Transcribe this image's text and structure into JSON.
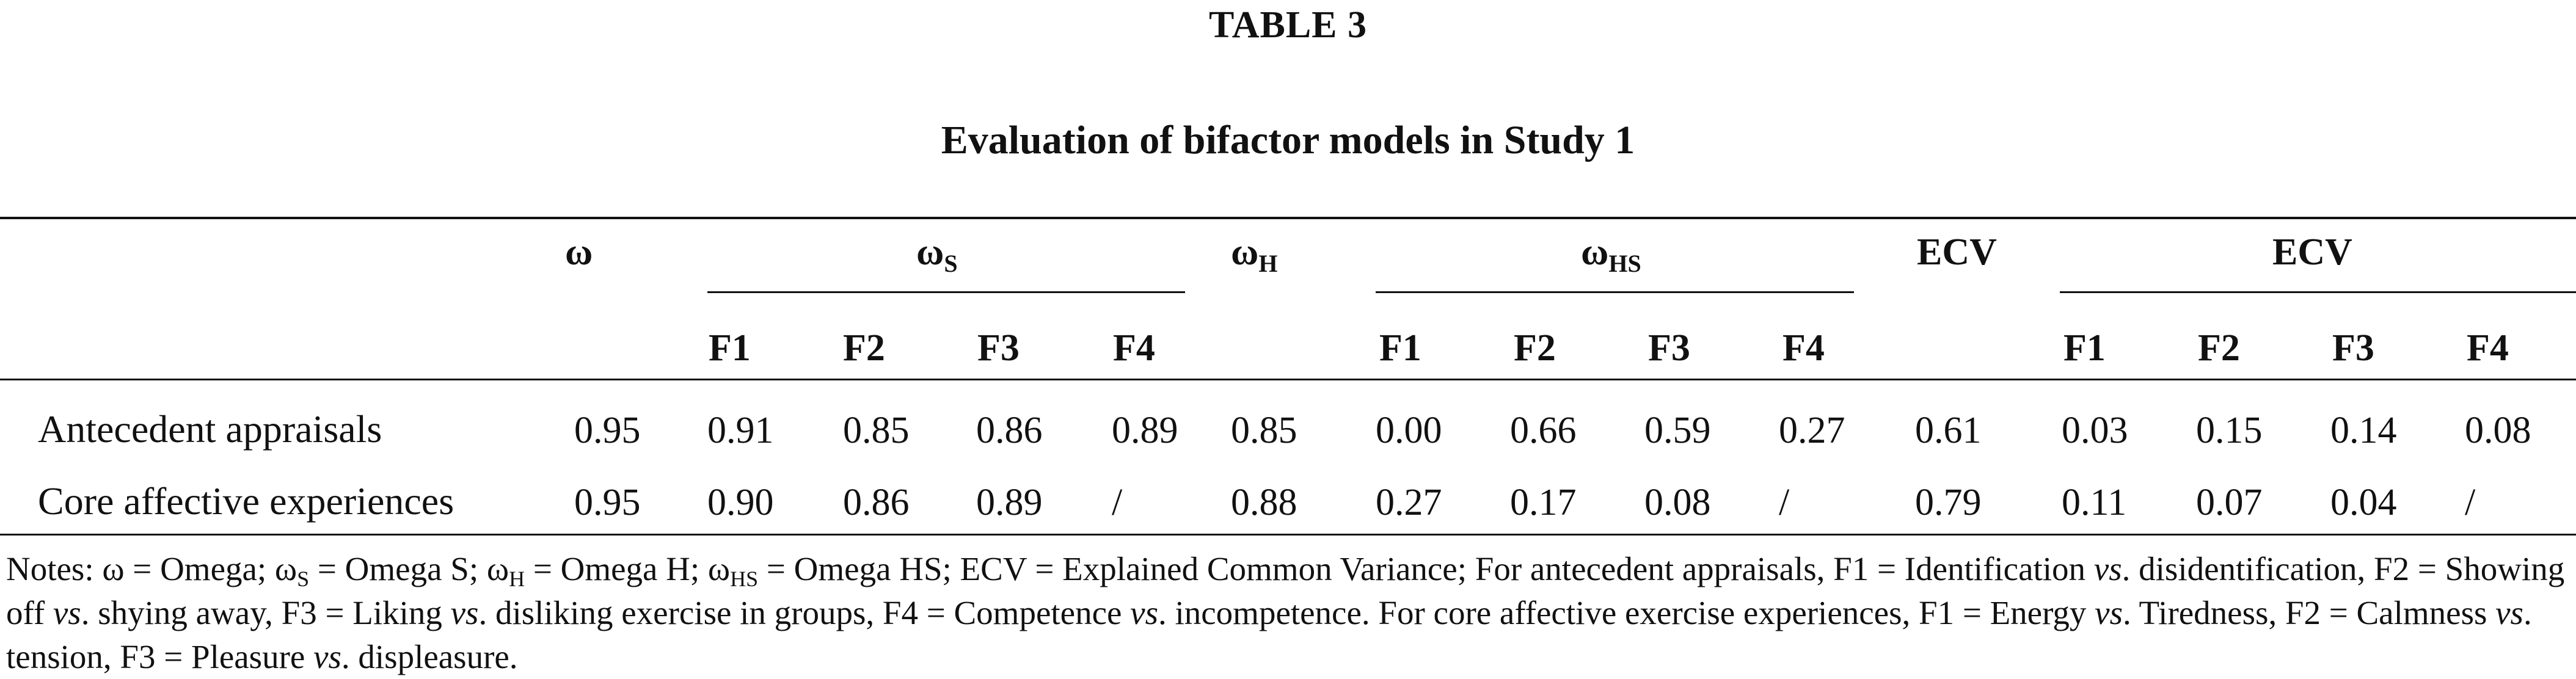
{
  "caption": {
    "label": "TABLE 3",
    "title": "Evaluation of bifactor models in Study 1"
  },
  "header": {
    "omega": "ω",
    "omega_s_base": "ω",
    "omega_s_sub": "S",
    "omega_h_base": "ω",
    "omega_h_sub": "H",
    "omega_hs_base": "ω",
    "omega_hs_sub": "HS",
    "ecv": "ECV",
    "ecv_group": "ECV",
    "factors": [
      "F1",
      "F2",
      "F3",
      "F4"
    ]
  },
  "rows": [
    {
      "label": "Antecedent appraisals",
      "omega": "0.95",
      "omega_s": [
        "0.91",
        "0.85",
        "0.86",
        "0.89"
      ],
      "omega_h": "0.85",
      "omega_hs": [
        "0.00",
        "0.66",
        "0.59",
        "0.27"
      ],
      "ecv": "0.61",
      "ecv_f": [
        "0.03",
        "0.15",
        "0.14",
        "0.08"
      ]
    },
    {
      "label": "Core affective experiences",
      "omega": "0.95",
      "omega_s": [
        "0.90",
        "0.86",
        "0.89",
        "/"
      ],
      "omega_h": "0.88",
      "omega_hs": [
        "0.27",
        "0.17",
        "0.08",
        "/"
      ],
      "ecv": "0.79",
      "ecv_f": [
        "0.11",
        "0.07",
        "0.04",
        "/"
      ]
    }
  ],
  "notes": {
    "prefix": "Notes: ω = Omega; ω",
    "s_sub": "S",
    "s_text": " = Omega S; ω",
    "h_sub": "H",
    "h_text": " = Omega H; ω",
    "hs_sub": "HS",
    "hs_text": " = Omega HS; ECV = Explained Common Variance; For antecedent appraisals, F1 = Identification ",
    "vs": "vs",
    "line2a": ". disidentification, F2 = Showing off ",
    "line2b": ". shying away, F3 = Liking ",
    "line2c": ". disliking exercise in groups, F4 = Competence ",
    "line2d": ". incompetence. For core affective exercise experiences, F1 = Energy ",
    "line3a": ". Tiredness, F2 = Calmness ",
    "line3b": ". tension, F3 = Pleasure ",
    "line3c": ". displeasure."
  }
}
